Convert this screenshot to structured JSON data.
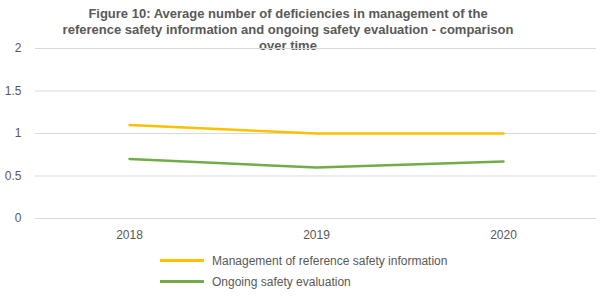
{
  "chart_data": {
    "type": "line",
    "title": "Figure 10: Average number of deficiencies in management of the reference safety information and ongoing safety evaluation - comparison over time",
    "categories": [
      "2018",
      "2019",
      "2020"
    ],
    "series": [
      {
        "name": "Management of reference safety information",
        "color": "#ffc000",
        "values": [
          1.1,
          1.0,
          1.0
        ]
      },
      {
        "name": "Ongoing safety evaluation",
        "color": "#70ad47",
        "values": [
          0.7,
          0.6,
          0.67
        ]
      }
    ],
    "ylim": [
      0,
      2
    ],
    "yticks": [
      0,
      0.5,
      1,
      1.5,
      2
    ],
    "grid": true,
    "legend": "bottom"
  }
}
